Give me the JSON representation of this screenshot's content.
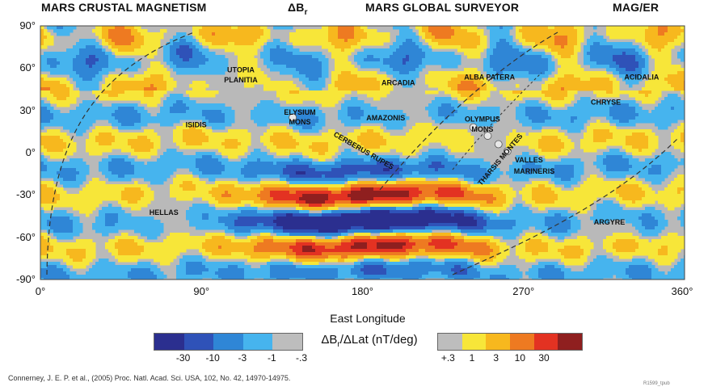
{
  "header": {
    "left": "MARS CRUSTAL MAGNETISM",
    "delta": "ΔB",
    "delta_sub": "r",
    "center": "MARS GLOBAL SURVEYOR",
    "right": "MAG/ER"
  },
  "chart_data": {
    "type": "heatmap",
    "xlabel": "East Longitude",
    "x_ticks": [
      "0°",
      "90°",
      "180°",
      "270°",
      "360°"
    ],
    "y_ticks": [
      "90°",
      "60°",
      "30°",
      "0°",
      "-30°",
      "-60°",
      "-90°"
    ],
    "xlim": [
      0,
      360
    ],
    "ylim": [
      -90,
      90
    ],
    "colorbar": {
      "title": "ΔB",
      "title_sub": "r",
      "title_rest": "/ΔLat (nT/deg)",
      "negative_ticks": [
        "-30",
        "-10",
        "-3",
        "-1",
        "-.3"
      ],
      "positive_ticks": [
        "+.3",
        "1",
        "3",
        "10",
        "30"
      ],
      "negative_colors": [
        "#2b2f8f",
        "#2f52b8",
        "#2f86d6",
        "#46b4ee",
        "#bdbdbd"
      ],
      "positive_colors": [
        "#bdbdbd",
        "#f7e639",
        "#f7b81e",
        "#ee7a21",
        "#e33222",
        "#8f1f1f"
      ]
    },
    "regions": [
      {
        "name": "UTOPIA",
        "lon": 112,
        "lat": 57
      },
      {
        "name": "PLANITIA",
        "lon": 112,
        "lat": 50
      },
      {
        "name": "ELYSIUM",
        "lon": 145,
        "lat": 27
      },
      {
        "name": "MONS",
        "lon": 145,
        "lat": 20
      },
      {
        "name": "ISIDIS",
        "lon": 87,
        "lat": 18
      },
      {
        "name": "ARCADIA",
        "lon": 200,
        "lat": 48
      },
      {
        "name": "AMAZONIS",
        "lon": 193,
        "lat": 23
      },
      {
        "name": "ALBA PATERA",
        "lon": 251,
        "lat": 52
      },
      {
        "name": "OLYMPUS",
        "lon": 247,
        "lat": 22
      },
      {
        "name": "MONS",
        "lon": 247,
        "lat": 15
      },
      {
        "name": "ACIDALIA",
        "lon": 336,
        "lat": 52
      },
      {
        "name": "CHRYSE",
        "lon": 316,
        "lat": 34
      },
      {
        "name": "VALLES",
        "lon": 273,
        "lat": -7
      },
      {
        "name": "MARINERIS",
        "lon": 276,
        "lat": -15
      },
      {
        "name": "HELLAS",
        "lon": 69,
        "lat": -44
      },
      {
        "name": "ARGYRE",
        "lon": 318,
        "lat": -51
      }
    ],
    "rotated_labels": [
      {
        "name": "CERBERUS RUPES",
        "lon": 180,
        "lat": 0,
        "angle": 30
      },
      {
        "name": "THARSIS MONTES",
        "lon": 258,
        "lat": -6,
        "angle": -50
      }
    ]
  },
  "citation": "Connerney, J. E. P. et al., (2005) Proc. Natl. Acad. Sci. USA, 102, No. 42, 14970-14975.",
  "code": "R1599_tpub"
}
